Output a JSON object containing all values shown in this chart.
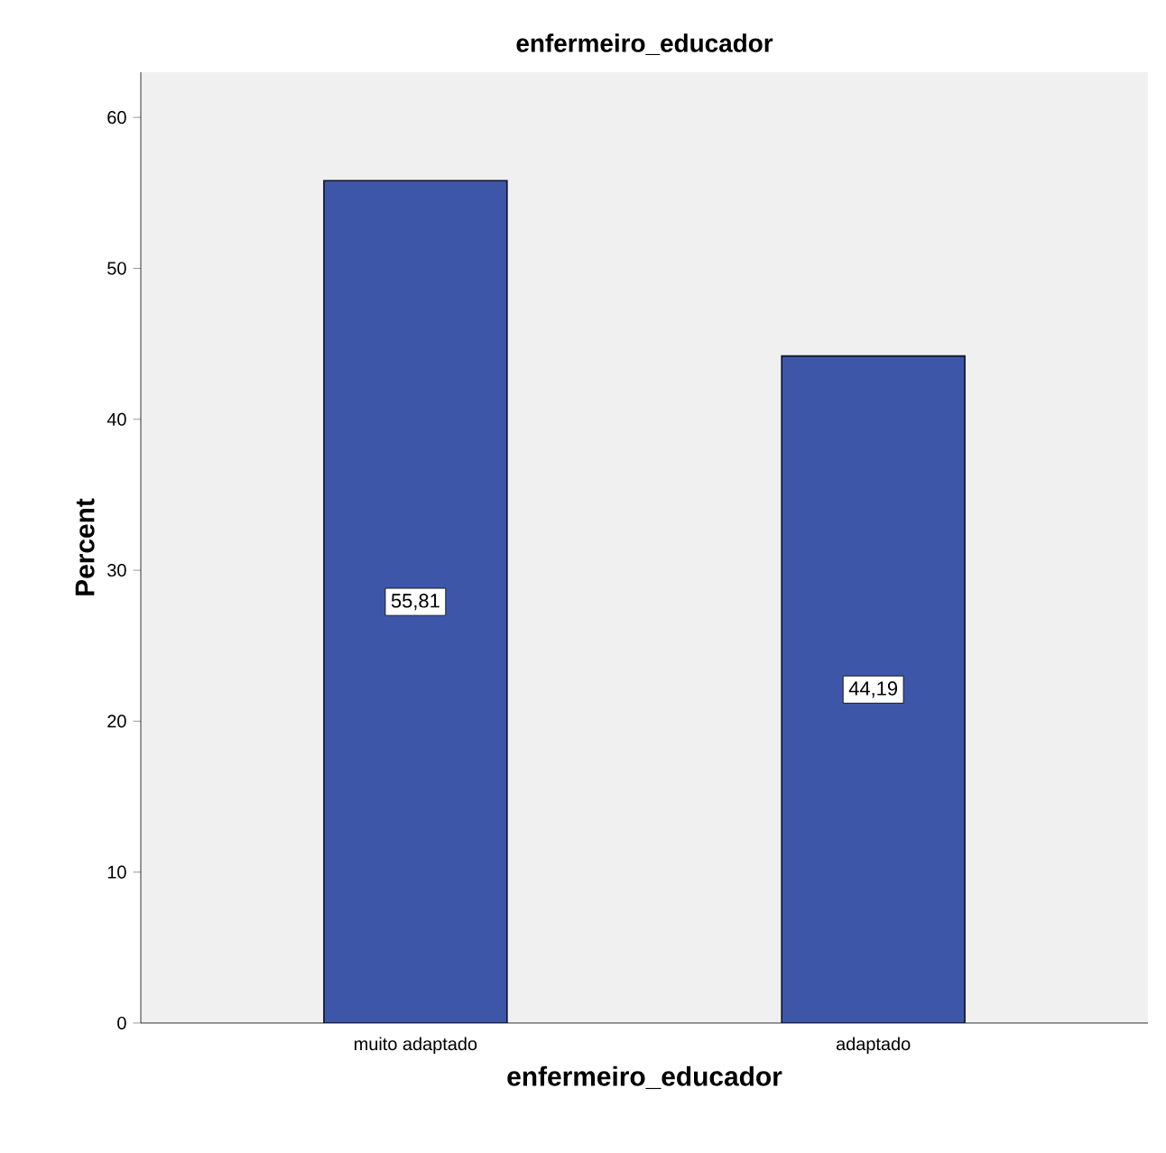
{
  "chart_data": {
    "type": "bar",
    "title": "enfermeiro_educador",
    "xlabel": "enfermeiro_educador",
    "ylabel": "Percent",
    "categories": [
      "muito adaptado",
      "adaptado"
    ],
    "values": [
      55.81,
      44.19
    ],
    "value_labels": [
      "55,81",
      "44,19"
    ],
    "color": "#3e56a8",
    "ylim": [
      0,
      63
    ],
    "yticks": [
      0,
      10,
      20,
      30,
      40,
      50,
      60
    ],
    "grid": false
  }
}
